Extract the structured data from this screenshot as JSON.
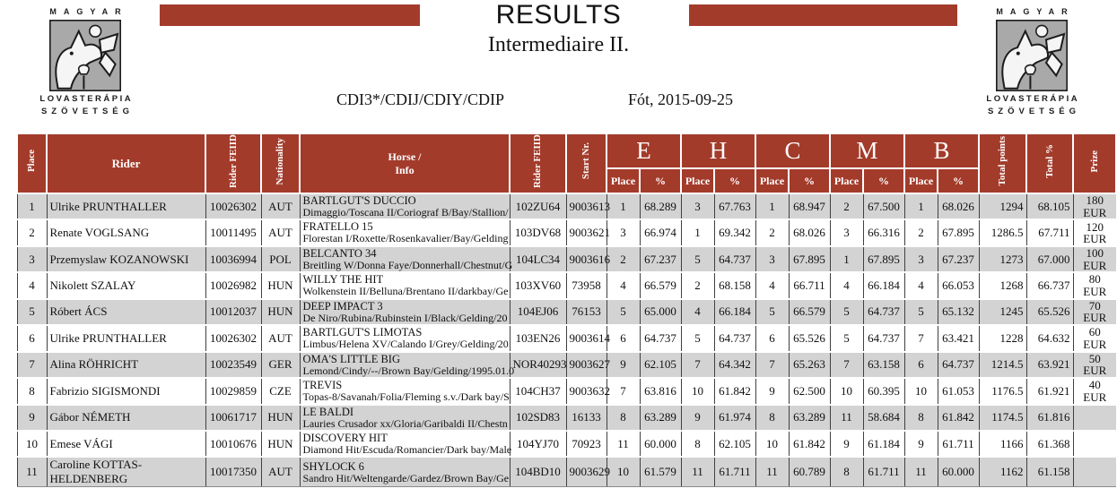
{
  "colors": {
    "accent": "#A33B2B",
    "row_alt": "#D3D3D3"
  },
  "page": {
    "title": "RESULTS",
    "subtitle": "Intermediaire II.",
    "event_code": "CDI3*/CDIJ/CDIY/CDIP",
    "event_location_date": "Fót, 2015-09-25"
  },
  "logo": {
    "word_top": "MAGYAR",
    "word_line1": "LOVASTERÁPIA",
    "word_line2": "SZÖVETSÉG"
  },
  "table": {
    "headers": {
      "place": "Place",
      "rider": "Rider",
      "rider_feiid": "Rider FEIID",
      "nationality": "Nationality",
      "horse_line1": "Horse /",
      "horse_line2": "Info",
      "horse_feiid": "Rider FEIID",
      "start_nr": "Start Nr.",
      "sub_place": "Place",
      "sub_pct": "%",
      "total_points": "Total points",
      "total_pct": "Total %",
      "prize": "Prize"
    },
    "judges": [
      "E",
      "H",
      "C",
      "M",
      "B"
    ],
    "rows": [
      {
        "place": "1",
        "rider": "Ulrike PRUNTHALLER",
        "rider_feiid": "10026302",
        "nat": "AUT",
        "horse": "BARTLGUT'S DUCCIO",
        "horse_info": "Dimaggio/Toscana II/Coriograf B/Bay/Stallion/",
        "horse_feiid": "102ZU64",
        "start_nr": "9003613",
        "e_place": "1",
        "e_pct": "68.289",
        "h_place": "3",
        "h_pct": "67.763",
        "c_place": "1",
        "c_pct": "68.947",
        "m_place": "2",
        "m_pct": "67.500",
        "b_place": "1",
        "b_pct": "68.026",
        "total_points": "1294",
        "total_pct": "68.105",
        "prize_amount": "180",
        "prize_currency": "EUR"
      },
      {
        "place": "2",
        "rider": "Renate VOGLSANG",
        "rider_feiid": "10011495",
        "nat": "AUT",
        "horse": "FRATELLO 15",
        "horse_info": "Florestan I/Roxette/Rosenkavalier/Bay/Gelding",
        "horse_feiid": "103DV68",
        "start_nr": "9003621",
        "e_place": "3",
        "e_pct": "66.974",
        "h_place": "1",
        "h_pct": "69.342",
        "c_place": "2",
        "c_pct": "68.026",
        "m_place": "3",
        "m_pct": "66.316",
        "b_place": "2",
        "b_pct": "67.895",
        "total_points": "1286.5",
        "total_pct": "67.711",
        "prize_amount": "120",
        "prize_currency": "EUR"
      },
      {
        "place": "3",
        "rider": "Przemyslaw KOZANOWSKI",
        "rider_feiid": "10036994",
        "nat": "POL",
        "horse": "BELCANTO 34",
        "horse_info": "Breitling W/Donna Faye/Donnerhall/Chestnut/G",
        "horse_feiid": "104LC34",
        "start_nr": "9003616",
        "e_place": "2",
        "e_pct": "67.237",
        "h_place": "5",
        "h_pct": "64.737",
        "c_place": "3",
        "c_pct": "67.895",
        "m_place": "1",
        "m_pct": "67.895",
        "b_place": "3",
        "b_pct": "67.237",
        "total_points": "1273",
        "total_pct": "67.000",
        "prize_amount": "100",
        "prize_currency": "EUR"
      },
      {
        "place": "4",
        "rider": "Nikolett SZALAY",
        "rider_feiid": "10026982",
        "nat": "HUN",
        "horse": "WILLY THE HIT",
        "horse_info": "Wolkenstein II/Belluna/Brentano II/darkbay/Ge",
        "horse_feiid": "103XV60",
        "start_nr": "73958",
        "e_place": "4",
        "e_pct": "66.579",
        "h_place": "2",
        "h_pct": "68.158",
        "c_place": "4",
        "c_pct": "66.711",
        "m_place": "4",
        "m_pct": "66.184",
        "b_place": "4",
        "b_pct": "66.053",
        "total_points": "1268",
        "total_pct": "66.737",
        "prize_amount": "80",
        "prize_currency": "EUR"
      },
      {
        "place": "5",
        "rider": "Róbert ÁCS",
        "rider_feiid": "10012037",
        "nat": "HUN",
        "horse": "DEEP IMPACT 3",
        "horse_info": "De Niro/Rubina/Rubinstein I/Black/Gelding/20",
        "horse_feiid": "104EJ06",
        "start_nr": "76153",
        "e_place": "5",
        "e_pct": "65.000",
        "h_place": "4",
        "h_pct": "66.184",
        "c_place": "5",
        "c_pct": "66.579",
        "m_place": "5",
        "m_pct": "64.737",
        "b_place": "5",
        "b_pct": "65.132",
        "total_points": "1245",
        "total_pct": "65.526",
        "prize_amount": "70",
        "prize_currency": "EUR"
      },
      {
        "place": "6",
        "rider": "Ulrike PRUNTHALLER",
        "rider_feiid": "10026302",
        "nat": "AUT",
        "horse": "BARTLGUT'S LIMOTAS",
        "horse_info": "Limbus/Helena XV/Calando I/Grey/Gelding/20",
        "horse_feiid": "103EN26",
        "start_nr": "9003614",
        "e_place": "6",
        "e_pct": "64.737",
        "h_place": "5",
        "h_pct": "64.737",
        "c_place": "6",
        "c_pct": "65.526",
        "m_place": "5",
        "m_pct": "64.737",
        "b_place": "7",
        "b_pct": "63.421",
        "total_points": "1228",
        "total_pct": "64.632",
        "prize_amount": "60",
        "prize_currency": "EUR"
      },
      {
        "place": "7",
        "rider": "Alina RÖHRICHT",
        "rider_feiid": "10023549",
        "nat": "GER",
        "horse": "OMA'S LITTLE BIG",
        "horse_info": "Lemond/Cindy/--/Brown Bay/Gelding/1995.01.0",
        "horse_feiid": "NOR40293",
        "start_nr": "9003627",
        "e_place": "9",
        "e_pct": "62.105",
        "h_place": "7",
        "h_pct": "64.342",
        "c_place": "7",
        "c_pct": "65.263",
        "m_place": "7",
        "m_pct": "63.158",
        "b_place": "6",
        "b_pct": "64.737",
        "total_points": "1214.5",
        "total_pct": "63.921",
        "prize_amount": "50",
        "prize_currency": "EUR"
      },
      {
        "place": "8",
        "rider": "Fabrizio SIGISMONDI",
        "rider_feiid": "10029859",
        "nat": "CZE",
        "horse": "TREVIS",
        "horse_info": "Topas-8/Savanah/Folia/Fleming s.v./Dark bay/S",
        "horse_feiid": "104CH37",
        "start_nr": "9003632",
        "e_place": "7",
        "e_pct": "63.816",
        "h_place": "10",
        "h_pct": "61.842",
        "c_place": "9",
        "c_pct": "62.500",
        "m_place": "10",
        "m_pct": "60.395",
        "b_place": "10",
        "b_pct": "61.053",
        "total_points": "1176.5",
        "total_pct": "61.921",
        "prize_amount": "40",
        "prize_currency": "EUR"
      },
      {
        "place": "9",
        "rider": "Gábor NÉMETH",
        "rider_feiid": "10061717",
        "nat": "HUN",
        "horse": "LE BALDI",
        "horse_info": "Lauries Crusador xx/Gloria/Garibaldi II/Chestn",
        "horse_feiid": "102SD83",
        "start_nr": "16133",
        "e_place": "8",
        "e_pct": "63.289",
        "h_place": "9",
        "h_pct": "61.974",
        "c_place": "8",
        "c_pct": "63.289",
        "m_place": "11",
        "m_pct": "58.684",
        "b_place": "8",
        "b_pct": "61.842",
        "total_points": "1174.5",
        "total_pct": "61.816",
        "prize_amount": "",
        "prize_currency": ""
      },
      {
        "place": "10",
        "rider": "Emese VÁGI",
        "rider_feiid": "10010676",
        "nat": "HUN",
        "horse": "DISCOVERY HIT",
        "horse_info": "Diamond Hit/Escuda/Romancier/Dark bay/Male",
        "horse_feiid": "104YJ70",
        "start_nr": "70923",
        "e_place": "11",
        "e_pct": "60.000",
        "h_place": "8",
        "h_pct": "62.105",
        "c_place": "10",
        "c_pct": "61.842",
        "m_place": "9",
        "m_pct": "61.184",
        "b_place": "9",
        "b_pct": "61.711",
        "total_points": "1166",
        "total_pct": "61.368",
        "prize_amount": "",
        "prize_currency": ""
      },
      {
        "place": "11",
        "rider": "Caroline KOTTAS-HELDENBERG",
        "rider_feiid": "10017350",
        "nat": "AUT",
        "horse": "SHYLOCK 6",
        "horse_info": "Sandro Hit/Weltengarde/Gardez/Brown Bay/Ge",
        "horse_feiid": "104BD10",
        "start_nr": "9003629",
        "e_place": "10",
        "e_pct": "61.579",
        "h_place": "11",
        "h_pct": "61.711",
        "c_place": "11",
        "c_pct": "60.789",
        "m_place": "8",
        "m_pct": "61.711",
        "b_place": "11",
        "b_pct": "60.000",
        "total_points": "1162",
        "total_pct": "61.158",
        "prize_amount": "",
        "prize_currency": ""
      }
    ]
  }
}
